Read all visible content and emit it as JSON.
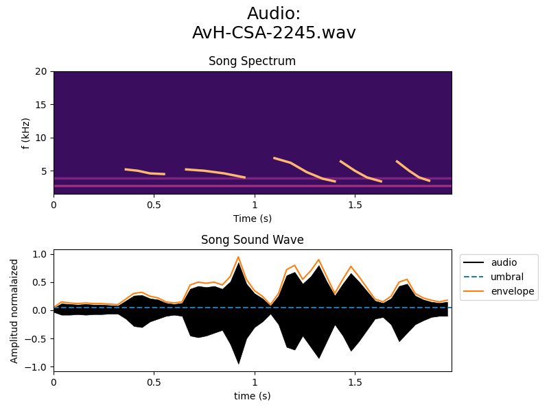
{
  "title": "Audio:\nAvH-CSA-2245.wav",
  "chart_data": [
    {
      "type": "line",
      "title": "Song Spectrum",
      "x_label": "Time (s)",
      "y_label": "f (kHz)",
      "color": "#3a0d5e",
      "xlim": [
        0,
        1.98
      ],
      "xticks": [
        0,
        0.5,
        1,
        1.5
      ],
      "ylim": [
        1.5,
        20
      ],
      "yticks": [
        5,
        10,
        15,
        20
      ],
      "series": [
        {
          "color": "#9c2e7f",
          "x": [
            0,
            1.98
          ],
          "values": [
            2.8,
            2.8
          ]
        },
        {
          "color": "#7a2382",
          "x": [
            0,
            1.98
          ],
          "values": [
            3.9,
            3.9
          ]
        },
        {
          "color": "#fdb96f",
          "x": [
            0.36,
            0.42,
            0.48,
            0.55
          ],
          "values": [
            5.2,
            5.0,
            4.6,
            4.5
          ]
        },
        {
          "color": "#fdb96f",
          "x": [
            0.66,
            0.75,
            0.85,
            0.95
          ],
          "values": [
            5.2,
            5.0,
            4.6,
            4.0
          ]
        },
        {
          "color": "#fdb96f",
          "x": [
            1.1,
            1.18,
            1.26,
            1.34,
            1.4
          ],
          "values": [
            6.9,
            6.2,
            4.8,
            3.8,
            3.4
          ]
        },
        {
          "color": "#fdb96f",
          "x": [
            1.43,
            1.5,
            1.56,
            1.63
          ],
          "values": [
            6.4,
            5.0,
            4.0,
            3.4
          ]
        },
        {
          "color": "#fdb96f",
          "x": [
            1.71,
            1.77,
            1.82,
            1.87
          ],
          "values": [
            6.4,
            5.0,
            4.0,
            3.5
          ]
        }
      ]
    },
    {
      "type": "line",
      "title": "Song Sound Wave",
      "x_label": "time (s)",
      "y_label": "Amplitud normalaized",
      "xlim": [
        0,
        1.98
      ],
      "xticks": [
        0,
        0.5,
        1,
        1.5
      ],
      "ylim": [
        -1.08,
        1.08
      ],
      "yticks": [
        {
          "value": -1,
          "label": "−1.0"
        },
        {
          "value": -0.5,
          "label": "−0.5"
        },
        {
          "value": 0,
          "label": "0.0"
        },
        {
          "value": 0.5,
          "label": "0.5"
        },
        {
          "value": 1,
          "label": "1.0"
        }
      ],
      "legend": "upper left",
      "series": [
        {
          "name": "audio",
          "type": "area",
          "color": "#000000",
          "x": [
            0,
            0.04,
            0.08,
            0.12,
            0.16,
            0.2,
            0.24,
            0.28,
            0.32,
            0.36,
            0.4,
            0.44,
            0.48,
            0.52,
            0.56,
            0.6,
            0.64,
            0.68,
            0.72,
            0.76,
            0.8,
            0.84,
            0.88,
            0.92,
            0.96,
            1.0,
            1.04,
            1.08,
            1.12,
            1.16,
            1.2,
            1.24,
            1.28,
            1.32,
            1.36,
            1.4,
            1.44,
            1.48,
            1.52,
            1.56,
            1.6,
            1.64,
            1.68,
            1.72,
            1.76,
            1.8,
            1.84,
            1.88,
            1.92,
            1.96
          ],
          "values": [
            0.04,
            0.12,
            0.11,
            0.1,
            0.11,
            0.1,
            0.1,
            0.09,
            0.08,
            0.17,
            0.26,
            0.27,
            0.21,
            0.19,
            0.13,
            0.11,
            0.13,
            0.38,
            0.43,
            0.41,
            0.43,
            0.38,
            0.51,
            0.85,
            0.47,
            0.3,
            0.21,
            0.08,
            0.26,
            0.62,
            0.68,
            0.47,
            0.6,
            0.8,
            0.51,
            0.26,
            0.47,
            0.66,
            0.51,
            0.34,
            0.17,
            0.13,
            0.21,
            0.43,
            0.47,
            0.26,
            0.19,
            0.15,
            0.13,
            0.15
          ],
          "lower": [
            -0.03,
            -0.08,
            -0.08,
            -0.07,
            -0.08,
            -0.07,
            -0.07,
            -0.06,
            -0.06,
            -0.15,
            -0.28,
            -0.3,
            -0.2,
            -0.15,
            -0.1,
            -0.08,
            -0.1,
            -0.45,
            -0.48,
            -0.45,
            -0.4,
            -0.35,
            -0.6,
            -0.95,
            -0.5,
            -0.3,
            -0.2,
            -0.06,
            -0.25,
            -0.65,
            -0.7,
            -0.45,
            -0.65,
            -0.85,
            -0.55,
            -0.25,
            -0.45,
            -0.72,
            -0.55,
            -0.35,
            -0.15,
            -0.12,
            -0.25,
            -0.55,
            -0.4,
            -0.25,
            -0.18,
            -0.12,
            -0.1,
            -0.1
          ]
        },
        {
          "name": "umbral",
          "type": "line",
          "color": "#1f77b4",
          "line_style": "dashed",
          "x": [
            0,
            1.98
          ],
          "values": [
            0.05,
            0.05
          ]
        },
        {
          "name": "envelope",
          "type": "line",
          "color": "#ff7f0e",
          "line_style": "solid",
          "x": [
            0,
            0.04,
            0.08,
            0.12,
            0.16,
            0.2,
            0.24,
            0.28,
            0.32,
            0.36,
            0.4,
            0.44,
            0.48,
            0.52,
            0.56,
            0.6,
            0.64,
            0.68,
            0.72,
            0.76,
            0.8,
            0.84,
            0.88,
            0.92,
            0.96,
            1.0,
            1.04,
            1.08,
            1.12,
            1.16,
            1.2,
            1.24,
            1.28,
            1.32,
            1.36,
            1.4,
            1.44,
            1.48,
            1.52,
            1.56,
            1.6,
            1.64,
            1.68,
            1.72,
            1.76,
            1.8,
            1.84,
            1.88,
            1.92,
            1.96
          ],
          "values": [
            0.05,
            0.15,
            0.13,
            0.12,
            0.13,
            0.12,
            0.12,
            0.11,
            0.1,
            0.2,
            0.3,
            0.32,
            0.25,
            0.22,
            0.15,
            0.13,
            0.15,
            0.45,
            0.5,
            0.48,
            0.5,
            0.45,
            0.6,
            0.95,
            0.55,
            0.35,
            0.25,
            0.1,
            0.3,
            0.72,
            0.8,
            0.55,
            0.7,
            0.9,
            0.6,
            0.3,
            0.55,
            0.78,
            0.6,
            0.4,
            0.2,
            0.15,
            0.25,
            0.5,
            0.55,
            0.3,
            0.22,
            0.18,
            0.15,
            0.18
          ]
        }
      ]
    }
  ]
}
